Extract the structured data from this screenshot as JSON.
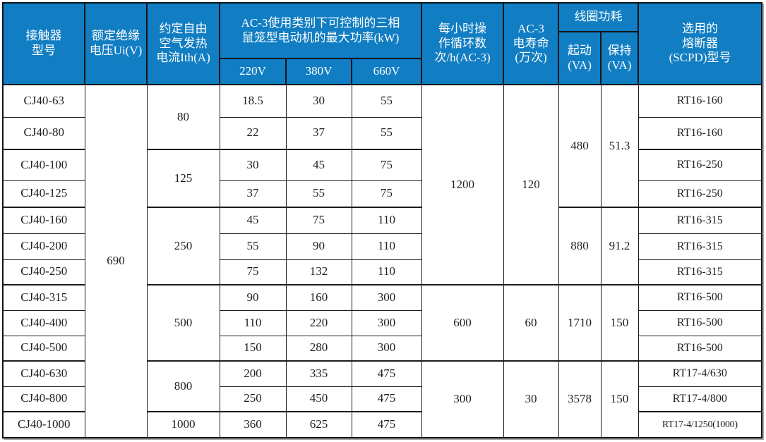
{
  "colors": {
    "header_bg": "#117dc2",
    "header_text": "#ffffff",
    "body_text": "#1f1f1f",
    "border": "#1c1c1c"
  },
  "header": {
    "model": "接触器\n型号",
    "ui": "额定绝缘\n电压Ui(V)",
    "ith": "约定自由\n空气发热\n电流Ith(A)",
    "power": "AC-3使用类别下可控制的三相\n鼠笼型电动机的最大功率(kW)",
    "v220": "220V",
    "v380": "380V",
    "v660": "660V",
    "cycles": "每小时操\n作循环数\n次/h(AC-3)",
    "life": "AC-3\n电寿命\n(万次)",
    "coil": "线圈功耗",
    "start": "起动\n(VA)",
    "hold": "保持\n(VA)",
    "fuse": "选用的\n熔断器\n(SCPD)型号"
  },
  "body_rows": [
    {
      "group_start": false,
      "cells": [
        {
          "n": "model-cell",
          "t": "CJ40-63"
        },
        {
          "n": "ui-cell",
          "t": "690",
          "rs": 13
        },
        {
          "n": "ith-cell",
          "t": "80",
          "rs": 2
        },
        {
          "n": "power-220-cell",
          "t": "18.5"
        },
        {
          "n": "power-380-cell",
          "t": "30"
        },
        {
          "n": "power-660-cell",
          "t": "55"
        },
        {
          "n": "cycles-cell",
          "t": "1200",
          "rs": 7
        },
        {
          "n": "life-cell",
          "t": "120",
          "rs": 7
        },
        {
          "n": "start-va-cell",
          "t": "480",
          "rs": 4
        },
        {
          "n": "hold-va-cell",
          "t": "51.3",
          "rs": 4
        },
        {
          "n": "fuse-cell",
          "t": "RT16-160",
          "cls": "fuse"
        }
      ]
    },
    {
      "group_start": false,
      "cells": [
        {
          "n": "model-cell",
          "t": "CJ40-80"
        },
        {
          "n": "power-220-cell",
          "t": "22"
        },
        {
          "n": "power-380-cell",
          "t": "37"
        },
        {
          "n": "power-660-cell",
          "t": "55"
        },
        {
          "n": "fuse-cell",
          "t": "RT16-160",
          "cls": "fuse"
        }
      ]
    },
    {
      "group_start": true,
      "cells": [
        {
          "n": "model-cell",
          "t": "CJ40-100"
        },
        {
          "n": "ith-cell",
          "t": "125",
          "rs": 2
        },
        {
          "n": "power-220-cell",
          "t": "30"
        },
        {
          "n": "power-380-cell",
          "t": "45"
        },
        {
          "n": "power-660-cell",
          "t": "75"
        },
        {
          "n": "fuse-cell",
          "t": "RT16-250",
          "cls": "fuse"
        }
      ]
    },
    {
      "group_start": false,
      "cells": [
        {
          "n": "model-cell",
          "t": "CJ40-125"
        },
        {
          "n": "power-220-cell",
          "t": "37"
        },
        {
          "n": "power-380-cell",
          "t": "55"
        },
        {
          "n": "power-660-cell",
          "t": "75"
        },
        {
          "n": "fuse-cell",
          "t": "RT16-250",
          "cls": "fuse"
        }
      ]
    },
    {
      "group_start": true,
      "cells": [
        {
          "n": "model-cell",
          "t": "CJ40-160"
        },
        {
          "n": "ith-cell",
          "t": "250",
          "rs": 3
        },
        {
          "n": "power-220-cell",
          "t": "45"
        },
        {
          "n": "power-380-cell",
          "t": "75"
        },
        {
          "n": "power-660-cell",
          "t": "110"
        },
        {
          "n": "start-va-cell",
          "t": "880",
          "rs": 3
        },
        {
          "n": "hold-va-cell",
          "t": "91.2",
          "rs": 3
        },
        {
          "n": "fuse-cell",
          "t": "RT16-315",
          "cls": "fuse"
        }
      ]
    },
    {
      "group_start": false,
      "cells": [
        {
          "n": "model-cell",
          "t": "CJ40-200"
        },
        {
          "n": "power-220-cell",
          "t": "55"
        },
        {
          "n": "power-380-cell",
          "t": "90"
        },
        {
          "n": "power-660-cell",
          "t": "110"
        },
        {
          "n": "fuse-cell",
          "t": "RT16-315",
          "cls": "fuse"
        }
      ]
    },
    {
      "group_start": false,
      "cells": [
        {
          "n": "model-cell",
          "t": "CJ40-250"
        },
        {
          "n": "power-220-cell",
          "t": "75"
        },
        {
          "n": "power-380-cell",
          "t": "132"
        },
        {
          "n": "power-660-cell",
          "t": "110"
        },
        {
          "n": "fuse-cell",
          "t": "RT16-315",
          "cls": "fuse"
        }
      ]
    },
    {
      "group_start": true,
      "cells": [
        {
          "n": "model-cell",
          "t": "CJ40-315"
        },
        {
          "n": "ith-cell",
          "t": "500",
          "rs": 3
        },
        {
          "n": "power-220-cell",
          "t": "90"
        },
        {
          "n": "power-380-cell",
          "t": "160"
        },
        {
          "n": "power-660-cell",
          "t": "300"
        },
        {
          "n": "cycles-cell",
          "t": "600",
          "rs": 3
        },
        {
          "n": "life-cell",
          "t": "60",
          "rs": 3
        },
        {
          "n": "start-va-cell",
          "t": "1710",
          "rs": 3
        },
        {
          "n": "hold-va-cell",
          "t": "150",
          "rs": 3
        },
        {
          "n": "fuse-cell",
          "t": "RT16-500",
          "cls": "fuse"
        }
      ]
    },
    {
      "group_start": false,
      "cells": [
        {
          "n": "model-cell",
          "t": "CJ40-400"
        },
        {
          "n": "power-220-cell",
          "t": "110"
        },
        {
          "n": "power-380-cell",
          "t": "220"
        },
        {
          "n": "power-660-cell",
          "t": "300"
        },
        {
          "n": "fuse-cell",
          "t": "RT16-500",
          "cls": "fuse"
        }
      ]
    },
    {
      "group_start": false,
      "cells": [
        {
          "n": "model-cell",
          "t": "CJ40-500"
        },
        {
          "n": "power-220-cell",
          "t": "150"
        },
        {
          "n": "power-380-cell",
          "t": "280"
        },
        {
          "n": "power-660-cell",
          "t": "300"
        },
        {
          "n": "fuse-cell",
          "t": "RT16-500",
          "cls": "fuse"
        }
      ]
    },
    {
      "group_start": true,
      "cells": [
        {
          "n": "model-cell",
          "t": "CJ40-630"
        },
        {
          "n": "ith-cell",
          "t": "800",
          "rs": 2
        },
        {
          "n": "power-220-cell",
          "t": "200"
        },
        {
          "n": "power-380-cell",
          "t": "335"
        },
        {
          "n": "power-660-cell",
          "t": "475"
        },
        {
          "n": "cycles-cell",
          "t": "300",
          "rs": 3
        },
        {
          "n": "life-cell",
          "t": "30",
          "rs": 3
        },
        {
          "n": "start-va-cell",
          "t": "3578",
          "rs": 3
        },
        {
          "n": "hold-va-cell",
          "t": "150",
          "rs": 3
        },
        {
          "n": "fuse-cell",
          "t": "RT17-4/630",
          "cls": "fuse"
        }
      ]
    },
    {
      "group_start": false,
      "cells": [
        {
          "n": "model-cell",
          "t": "CJ40-800"
        },
        {
          "n": "power-220-cell",
          "t": "250"
        },
        {
          "n": "power-380-cell",
          "t": "450"
        },
        {
          "n": "power-660-cell",
          "t": "475"
        },
        {
          "n": "fuse-cell",
          "t": "RT17-4/800",
          "cls": "fuse"
        }
      ]
    },
    {
      "group_start": true,
      "cells": [
        {
          "n": "model-cell",
          "t": "CJ40-1000"
        },
        {
          "n": "ith-cell",
          "t": "1000"
        },
        {
          "n": "power-220-cell",
          "t": "360"
        },
        {
          "n": "power-380-cell",
          "t": "625"
        },
        {
          "n": "power-660-cell",
          "t": "475"
        },
        {
          "n": "fuse-cell",
          "t": "RT17-4/1250(1000)",
          "cls": "fuse small"
        }
      ]
    }
  ]
}
